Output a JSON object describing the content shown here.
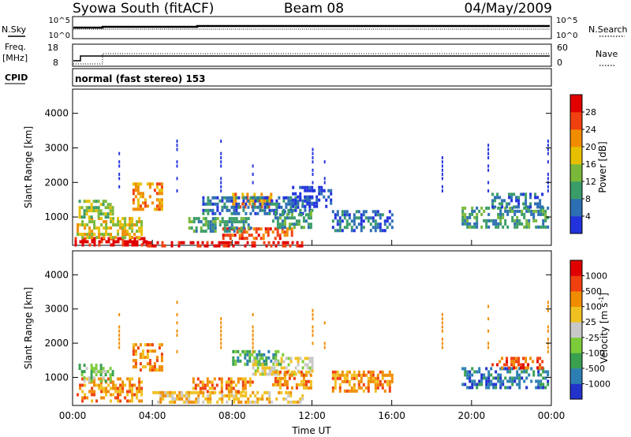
{
  "header": {
    "title": "Syowa South (fitACF)",
    "beam": "Beam 08",
    "date": "04/May/2009"
  },
  "top_panel": {
    "nsky_label": "N.Sky",
    "nsky_ticks": [
      "10^5",
      "10^0"
    ],
    "nsearch_label": "N.Search",
    "nsearch_ticks": [
      "10^5",
      "10^0"
    ],
    "freq_label_1": "Freq.",
    "freq_label_2": "[MHz]",
    "freq_ticks": [
      "18",
      "8"
    ],
    "nave_label": "Nave",
    "nave_ticks": [
      "60",
      "0"
    ],
    "cpid_label": "CPID",
    "cpid_text": "normal (fast stereo) 153"
  },
  "chart_data": [
    {
      "type": "heatmap",
      "name": "power",
      "ylabel": "Slant Range [km]",
      "xlabel": "Time UT",
      "x_ticks": [
        "00:00",
        "04:00",
        "08:00",
        "12:00",
        "16:00",
        "20:00",
        "00:00"
      ],
      "y_ticks": [
        1000,
        2000,
        3000,
        4000
      ],
      "xlim": [
        0,
        24
      ],
      "ylim": [
        180,
        4700
      ],
      "colorbar": {
        "label": "Power [dB]",
        "ticks": [
          "4",
          "8",
          "12",
          "16",
          "20",
          "24",
          "28"
        ],
        "colors": [
          "#2233dd",
          "#2d6fb3",
          "#3a9c68",
          "#7ab83a",
          "#e6c000",
          "#f08c00",
          "#f04010",
          "#e00000"
        ]
      },
      "regions": [
        {
          "t0": 0.1,
          "t1": 3.8,
          "r0": 180,
          "r1": 420,
          "level": 7
        },
        {
          "t0": 0.2,
          "t1": 3.5,
          "r0": 420,
          "r1": 1000,
          "level": 4
        },
        {
          "t0": 0.3,
          "t1": 2.0,
          "r0": 1000,
          "r1": 1500,
          "level": 3
        },
        {
          "t0": 3.0,
          "t1": 4.5,
          "r0": 1200,
          "r1": 2000,
          "level": 5
        },
        {
          "t0": 3.5,
          "t1": 11.5,
          "r0": 180,
          "r1": 300,
          "level": 7
        },
        {
          "t0": 7.5,
          "t1": 11.0,
          "r0": 400,
          "r1": 700,
          "level": 6
        },
        {
          "t0": 5.8,
          "t1": 9.0,
          "r0": 600,
          "r1": 1000,
          "level": 2
        },
        {
          "t0": 8.0,
          "t1": 10.0,
          "r0": 1300,
          "r1": 1700,
          "level": 5
        },
        {
          "t0": 6.5,
          "t1": 12.0,
          "r0": 1100,
          "r1": 1600,
          "level": 1
        },
        {
          "t0": 10.0,
          "t1": 12.0,
          "r0": 700,
          "r1": 1200,
          "level": 2
        },
        {
          "t0": 11.0,
          "t1": 13.0,
          "r0": 1300,
          "r1": 1900,
          "level": 0
        },
        {
          "t0": 13.0,
          "t1": 16.0,
          "r0": 600,
          "r1": 1200,
          "level": 1
        },
        {
          "t0": 19.5,
          "t1": 23.8,
          "r0": 700,
          "r1": 1300,
          "level": 2
        },
        {
          "t0": 21.0,
          "t1": 23.5,
          "r0": 1300,
          "r1": 1700,
          "level": 1
        }
      ],
      "rays": [
        {
          "t": 2.3,
          "r": 3000
        },
        {
          "t": 5.2,
          "r": 3250
        },
        {
          "t": 7.4,
          "r": 3300
        },
        {
          "t": 9.0,
          "r": 2900
        },
        {
          "t": 12.0,
          "r": 3300
        },
        {
          "t": 12.6,
          "r": 2700
        },
        {
          "t": 18.5,
          "r": 2900
        },
        {
          "t": 20.8,
          "r": 3200
        },
        {
          "t": 23.8,
          "r": 3300
        }
      ]
    },
    {
      "type": "heatmap",
      "name": "velocity",
      "ylabel": "Slant Range [km]",
      "xlabel": "Time UT",
      "x_ticks": [
        "00:00",
        "04:00",
        "08:00",
        "12:00",
        "16:00",
        "20:00",
        "00:00"
      ],
      "y_ticks": [
        1000,
        2000,
        3000,
        4000
      ],
      "xlim": [
        0,
        24
      ],
      "ylim": [
        180,
        4700
      ],
      "colorbar": {
        "label": "Velocity [m s",
        "label_sup": "-1",
        "label_close": "]",
        "ticks": [
          "1000",
          "500",
          "100",
          "25",
          "-25",
          "-100",
          "-500",
          "-1000"
        ],
        "colors": [
          "#2233cc",
          "#2d7fb3",
          "#3aa050",
          "#7ccc3a",
          "#c8c8c8",
          "#f0c020",
          "#f08c00",
          "#f04010",
          "#e00000"
        ]
      },
      "regions": [
        {
          "t0": 0.2,
          "t1": 3.5,
          "r0": 300,
          "r1": 1000,
          "level": 6
        },
        {
          "t0": 0.3,
          "t1": 2.0,
          "r0": 900,
          "r1": 1400,
          "level": 3
        },
        {
          "t0": 3.0,
          "t1": 4.5,
          "r0": 1200,
          "r1": 2000,
          "level": 6
        },
        {
          "t0": 4.0,
          "t1": 11.5,
          "r0": 250,
          "r1": 600,
          "level": 5
        },
        {
          "t0": 6.0,
          "t1": 9.0,
          "r0": 600,
          "r1": 1000,
          "level": 6
        },
        {
          "t0": 8.0,
          "t1": 10.5,
          "r0": 1400,
          "r1": 1800,
          "level": 2
        },
        {
          "t0": 9.0,
          "t1": 12.0,
          "r0": 1100,
          "r1": 1600,
          "level": 4
        },
        {
          "t0": 10.0,
          "t1": 12.0,
          "r0": 700,
          "r1": 1200,
          "level": 6
        },
        {
          "t0": 13.0,
          "t1": 16.0,
          "r0": 600,
          "r1": 1200,
          "level": 6
        },
        {
          "t0": 19.5,
          "t1": 23.8,
          "r0": 700,
          "r1": 1300,
          "level": 1
        },
        {
          "t0": 21.0,
          "t1": 23.5,
          "r0": 1300,
          "r1": 1600,
          "level": 7
        }
      ],
      "rays": [
        {
          "t": 2.3,
          "r": 3000
        },
        {
          "t": 5.2,
          "r": 3250
        },
        {
          "t": 7.4,
          "r": 3300
        },
        {
          "t": 9.0,
          "r": 2900
        },
        {
          "t": 12.0,
          "r": 3300
        },
        {
          "t": 12.6,
          "r": 2700
        },
        {
          "t": 18.5,
          "r": 2900
        },
        {
          "t": 20.8,
          "r": 3200
        },
        {
          "t": 23.8,
          "r": 3300
        }
      ]
    }
  ]
}
